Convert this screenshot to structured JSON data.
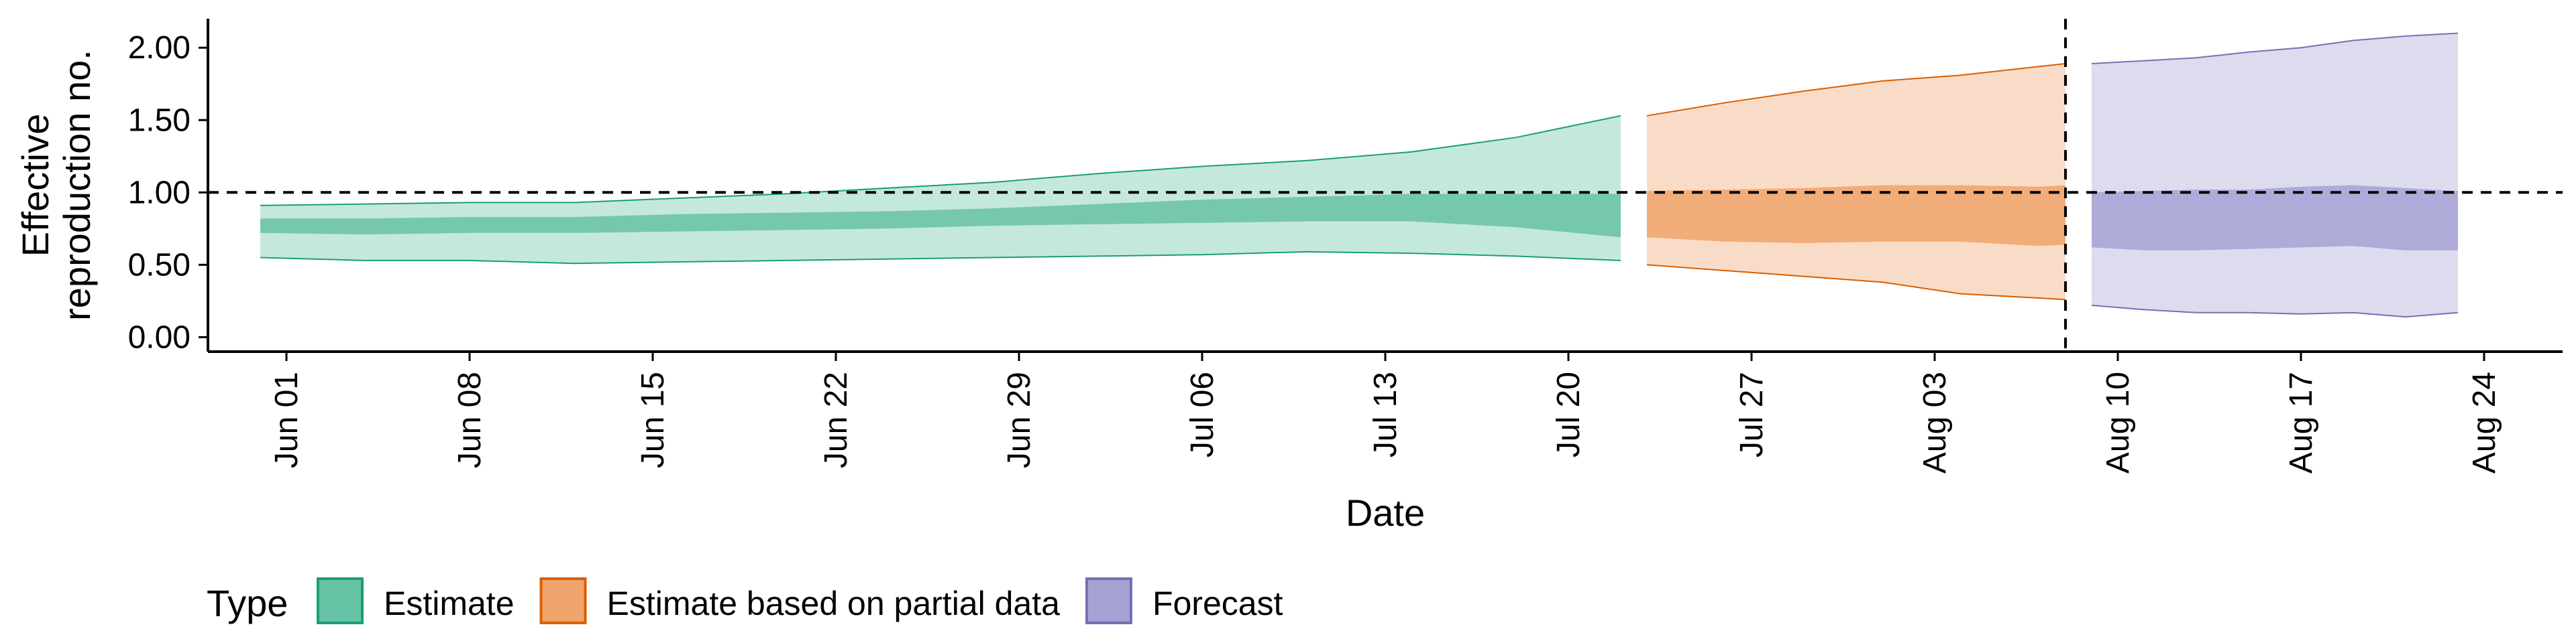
{
  "chart_data": {
    "type": "area",
    "title": "",
    "xlabel": "Date",
    "ylabel": "Effective reproduction no.",
    "ylabel_lines": [
      "Effective",
      "reproduction no."
    ],
    "x_start": "2020-05-29",
    "x_end": "2020-08-27",
    "x_ticks": [
      "2020-06-01",
      "2020-06-08",
      "2020-06-15",
      "2020-06-22",
      "2020-06-29",
      "2020-07-06",
      "2020-07-13",
      "2020-07-20",
      "2020-07-27",
      "2020-08-03",
      "2020-08-10",
      "2020-08-17",
      "2020-08-24"
    ],
    "x_tick_labels": [
      "Jun 01",
      "Jun 08",
      "Jun 15",
      "Jun 22",
      "Jun 29",
      "Jul 06",
      "Jul 13",
      "Jul 20",
      "Jul 27",
      "Aug 03",
      "Aug 10",
      "Aug 17",
      "Aug 24"
    ],
    "ylim": [
      -0.1,
      2.2
    ],
    "y_ticks": [
      0.0,
      0.5,
      1.0,
      1.5,
      2.0
    ],
    "y_tick_labels": [
      "0.00",
      "0.50",
      "1.00",
      "1.50",
      "2.00"
    ],
    "hline": 1.0,
    "vline": "2020-08-08",
    "grid": false,
    "legend_position": "bottom-left",
    "legend_title": "Type",
    "series": [
      {
        "name": "Estimate",
        "color": "#66c2a5",
        "border": "#1b9e77",
        "x": [
          "2020-05-31",
          "2020-06-04",
          "2020-06-08",
          "2020-06-12",
          "2020-06-16",
          "2020-06-20",
          "2020-06-24",
          "2020-06-28",
          "2020-07-02",
          "2020-07-06",
          "2020-07-10",
          "2020-07-14",
          "2020-07-18",
          "2020-07-22"
        ],
        "outer_lower": [
          0.55,
          0.53,
          0.53,
          0.51,
          0.52,
          0.53,
          0.54,
          0.55,
          0.56,
          0.57,
          0.59,
          0.58,
          0.56,
          0.53
        ],
        "outer_upper": [
          0.91,
          0.92,
          0.93,
          0.93,
          0.96,
          0.99,
          1.03,
          1.07,
          1.13,
          1.18,
          1.22,
          1.28,
          1.38,
          1.53
        ],
        "inner_lower": [
          0.72,
          0.71,
          0.72,
          0.72,
          0.73,
          0.74,
          0.75,
          0.77,
          0.78,
          0.79,
          0.8,
          0.8,
          0.76,
          0.69
        ],
        "inner_upper": [
          0.82,
          0.82,
          0.83,
          0.83,
          0.85,
          0.86,
          0.87,
          0.89,
          0.92,
          0.95,
          0.97,
          0.99,
          0.99,
          0.99
        ]
      },
      {
        "name": "Estimate based on partial data",
        "color": "#f0a36b",
        "border": "#d95f02",
        "x": [
          "2020-07-23",
          "2020-07-26",
          "2020-07-29",
          "2020-08-01",
          "2020-08-04",
          "2020-08-07",
          "2020-08-08"
        ],
        "outer_lower": [
          0.5,
          0.46,
          0.42,
          0.38,
          0.3,
          0.27,
          0.26
        ],
        "outer_upper": [
          1.53,
          1.62,
          1.7,
          1.77,
          1.81,
          1.87,
          1.89
        ],
        "inner_lower": [
          0.69,
          0.66,
          0.65,
          0.66,
          0.66,
          0.63,
          0.64
        ],
        "inner_upper": [
          1.01,
          1.02,
          1.03,
          1.05,
          1.05,
          1.04,
          1.05
        ]
      },
      {
        "name": "Forecast",
        "color": "#a6a2d3",
        "border": "#7570b3",
        "x": [
          "2020-08-09",
          "2020-08-11",
          "2020-08-13",
          "2020-08-15",
          "2020-08-17",
          "2020-08-19",
          "2020-08-21",
          "2020-08-23"
        ],
        "outer_lower": [
          0.22,
          0.19,
          0.17,
          0.17,
          0.16,
          0.17,
          0.14,
          0.17
        ],
        "outer_upper": [
          1.89,
          1.91,
          1.93,
          1.97,
          2.0,
          2.05,
          2.08,
          2.1
        ],
        "inner_lower": [
          0.62,
          0.6,
          0.6,
          0.61,
          0.62,
          0.63,
          0.6,
          0.6
        ],
        "inner_upper": [
          1.0,
          1.01,
          1.02,
          1.02,
          1.04,
          1.05,
          1.03,
          1.01
        ]
      }
    ]
  }
}
